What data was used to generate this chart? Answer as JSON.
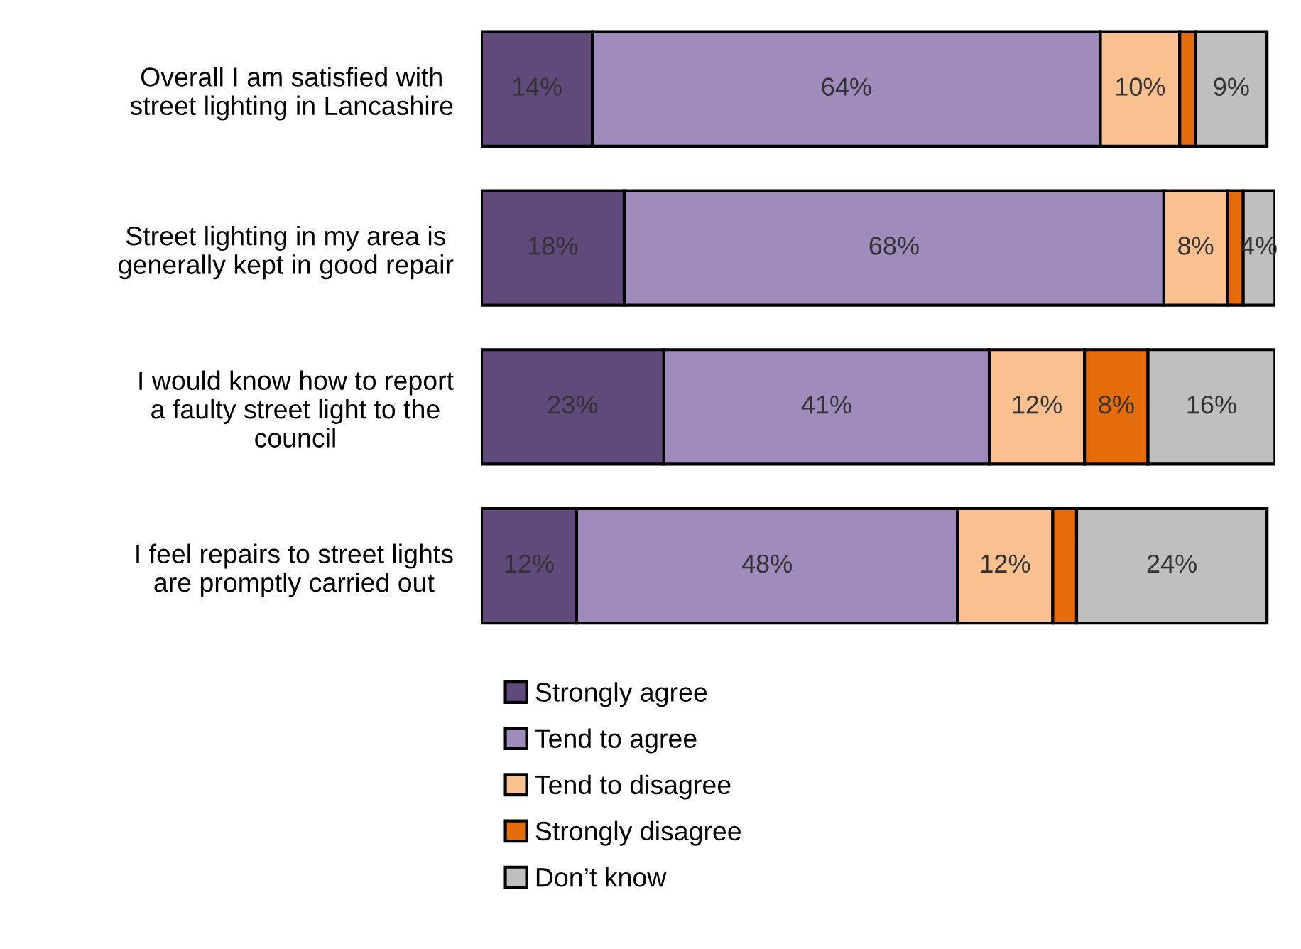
{
  "chart_data": {
    "type": "bar",
    "orientation": "horizontal",
    "stacked": true,
    "legend": "bottom",
    "categories": [
      "Overall I am satisfied with\nstreet lighting in Lancashire",
      "Street lighting in my area is\ngenerally kept in good repair",
      "I would know how to report\na faulty street light to the\ncouncil",
      "I feel repairs to street lights\nare promptly carried out"
    ],
    "series": [
      {
        "name": "Strongly agree",
        "color": "#604a7b",
        "values": [
          14,
          18,
          23,
          12
        ],
        "value_labels": [
          "14%",
          "18%",
          "23%",
          "12%"
        ]
      },
      {
        "name": "Tend to agree",
        "color": "#a08cbc",
        "values": [
          64,
          68,
          41,
          48
        ],
        "value_labels": [
          "64%",
          "68%",
          "41%",
          "48%"
        ]
      },
      {
        "name": "Tend to disagree",
        "color": "#fac090",
        "values": [
          10,
          8,
          12,
          12
        ],
        "value_labels": [
          "10%",
          "8%",
          "12%",
          "12%"
        ]
      },
      {
        "name": "Strongly disagree",
        "color": "#e46c0a",
        "values": [
          2,
          2,
          8,
          3
        ],
        "value_labels": [
          null,
          null,
          "8%",
          null
        ]
      },
      {
        "name": "Don’t know",
        "color": "#bfbfbf",
        "values": [
          9,
          4,
          16,
          24
        ],
        "value_labels": [
          "9%",
          "4%",
          "16%",
          "24%"
        ]
      }
    ]
  }
}
